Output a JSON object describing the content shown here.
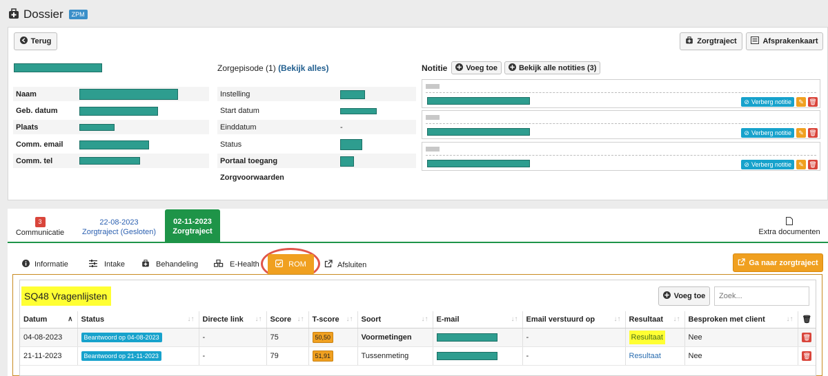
{
  "header": {
    "title": "Dossier",
    "badge": "ZPM"
  },
  "toolbar": {
    "back_label": "Terug",
    "zorgtraject_label": "Zorgtraject",
    "afsprakenkaart_label": "Afsprakenkaart"
  },
  "patient": {
    "fields": [
      {
        "label": "Naam"
      },
      {
        "label": "Geb. datum"
      },
      {
        "label": "Plaats"
      },
      {
        "label": "Comm. email"
      },
      {
        "label": "Comm. tel"
      }
    ]
  },
  "episode": {
    "title": "Zorgepisode (1)",
    "link": "(Bekijk alles)",
    "fields": [
      {
        "label": "Instelling",
        "value": ""
      },
      {
        "label": "Start datum",
        "value": ""
      },
      {
        "label": "Einddatum",
        "value": "-"
      },
      {
        "label": "Status",
        "value": ""
      },
      {
        "label": "Portaal toegang",
        "value": ""
      },
      {
        "label": "Zorgvoorwaarden",
        "value": ""
      }
    ]
  },
  "notes": {
    "title": "Notitie",
    "add_label": "Voeg toe",
    "view_all_label": "Bekijk alle notities (3)",
    "hide_label": "Verberg notitie"
  },
  "tabs": {
    "communicatie": {
      "count": "3",
      "label": "Communicatie"
    },
    "closed": {
      "date": "22-08-2023",
      "label": "Zorgtraject (Gesloten)"
    },
    "active": {
      "date": "02-11-2023",
      "label": "Zorgtraject"
    },
    "extra": "Extra documenten"
  },
  "subtabs": [
    "Informatie",
    "Intake",
    "Behandeling",
    "E-Health",
    "ROM",
    "Afsluiten"
  ],
  "goto_button": "Ga naar zorgtraject",
  "rom": {
    "title": "SQ48 Vragenlijsten",
    "add_label": "Voeg toe",
    "search_placeholder": "Zoek...",
    "columns": [
      "Datum",
      "Status",
      "Directe link",
      "Score",
      "T-score",
      "Soort",
      "E-mail",
      "Email verstuurd op",
      "Resultaat",
      "Besproken met client"
    ],
    "rows": [
      {
        "datum": "04-08-2023",
        "status": "Beantwoord op 04-08-2023",
        "link": "-",
        "score": "75",
        "tscore": "50,50",
        "soort": "Voormetingen",
        "verstuurd": "-",
        "resultaat": "Resultaat",
        "besproken": "Nee"
      },
      {
        "datum": "21-11-2023",
        "status": "Beantwoord op 21-11-2023",
        "link": "-",
        "score": "79",
        "tscore": "51,91",
        "soort": "Tussenmeting",
        "verstuurd": "-",
        "resultaat": "Resultaat",
        "besproken": "Nee"
      }
    ]
  },
  "colors": {
    "teal": "#2e9d8f",
    "green": "#1e9448",
    "orange": "#f0a020",
    "info_blue": "#17a2cc",
    "danger": "#d9453b",
    "highlight": "#ffff33"
  }
}
